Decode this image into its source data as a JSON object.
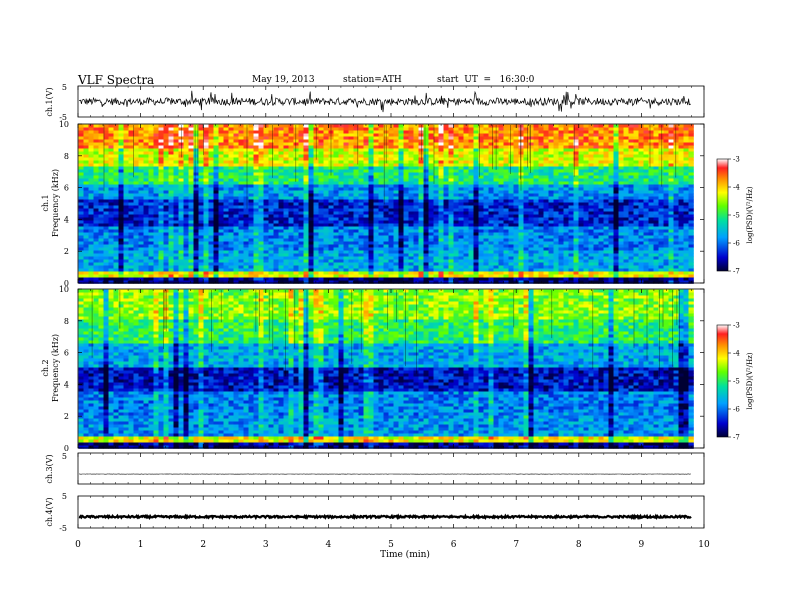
{
  "header": {
    "title": "VLF  Spectra",
    "date": "May 19, 2013",
    "station": "station=ATH",
    "start": "start  UT  =   16:30:0"
  },
  "chart_data": [
    {
      "type": "line",
      "panel": "ch1-waveform",
      "ylabel": "ch.1(V)",
      "ylim": [
        -5,
        5
      ],
      "yticks": [
        "5",
        "-5"
      ],
      "x_range": [
        0,
        10
      ],
      "data_end_min": 9.8,
      "description_values": {
        "baseline": 0,
        "typical_amplitude": 1.2,
        "spike_amplitude": 3.5
      }
    },
    {
      "type": "heatmap",
      "panel": "ch1-spectrogram",
      "ylabel": "ch.1\nFrequency  (kHz)",
      "ylabel_line1": "ch.1",
      "ylabel_line2": "Frequency  (kHz)",
      "ylim": [
        0,
        10
      ],
      "yticks": [
        "0",
        "2",
        "4",
        "6",
        "8",
        "10"
      ],
      "colorbar": {
        "label": "log(PSD)(V²/Hz)",
        "ticks": [
          "-3",
          "-4",
          "-5",
          "-6",
          "-7"
        ],
        "range": [
          -7,
          -3
        ]
      },
      "bands": [
        {
          "f0": 0.0,
          "f1": 0.3,
          "logpsd": -6.8
        },
        {
          "f0": 0.3,
          "f1": 0.7,
          "logpsd": -4.2
        },
        {
          "f0": 0.7,
          "f1": 2.0,
          "logpsd": -5.7
        },
        {
          "f0": 2.0,
          "f1": 3.5,
          "logpsd": -5.9
        },
        {
          "f0": 3.5,
          "f1": 5.2,
          "logpsd": -6.4
        },
        {
          "f0": 5.2,
          "f1": 6.2,
          "logpsd": -5.8
        },
        {
          "f0": 6.2,
          "f1": 7.4,
          "logpsd": -5.1
        },
        {
          "f0": 7.4,
          "f1": 8.4,
          "logpsd": -4.3
        },
        {
          "f0": 8.4,
          "f1": 10.0,
          "logpsd": -3.7
        }
      ]
    },
    {
      "type": "heatmap",
      "panel": "ch2-spectrogram",
      "ylabel_line1": "ch.2",
      "ylabel_line2": "Frequency  (kHz)",
      "ylim": [
        0,
        10
      ],
      "yticks": [
        "0",
        "2",
        "4",
        "6",
        "8",
        "10"
      ],
      "colorbar": {
        "label": "log(PSD)(V²/Hz)",
        "ticks": [
          "-3",
          "-4",
          "-5",
          "-6",
          "-7"
        ],
        "range": [
          -7,
          -3
        ]
      },
      "bands": [
        {
          "f0": 0.0,
          "f1": 0.3,
          "logpsd": -6.8
        },
        {
          "f0": 0.3,
          "f1": 0.7,
          "logpsd": -4.2
        },
        {
          "f0": 0.7,
          "f1": 2.0,
          "logpsd": -5.8
        },
        {
          "f0": 2.0,
          "f1": 3.5,
          "logpsd": -5.9
        },
        {
          "f0": 3.5,
          "f1": 5.0,
          "logpsd": -6.5
        },
        {
          "f0": 5.0,
          "f1": 6.5,
          "logpsd": -5.7
        },
        {
          "f0": 6.5,
          "f1": 8.0,
          "logpsd": -5.0
        },
        {
          "f0": 8.0,
          "f1": 10.0,
          "logpsd": -4.6
        }
      ]
    },
    {
      "type": "line",
      "panel": "ch3-waveform",
      "ylabel": "ch.3(V)",
      "ylim": [
        -5,
        5
      ],
      "yticks": [
        "5"
      ],
      "x_range": [
        0,
        10
      ],
      "data_end_min": 9.8,
      "description_values": {
        "baseline": -1.8,
        "typical_amplitude": 0.05
      }
    },
    {
      "type": "line",
      "panel": "ch4-waveform",
      "ylabel": "ch.4(V)",
      "ylim": [
        -5,
        5
      ],
      "yticks": [
        "5",
        "-5"
      ],
      "x_range": [
        0,
        10
      ],
      "data_end_min": 9.8,
      "description_values": {
        "baseline": -1.5,
        "typical_amplitude": 0.3
      }
    }
  ],
  "xaxis": {
    "label": "Time  (min)",
    "ticks": [
      "0",
      "1",
      "2",
      "3",
      "4",
      "5",
      "6",
      "7",
      "8",
      "9",
      "10"
    ],
    "range": [
      0,
      10
    ]
  }
}
